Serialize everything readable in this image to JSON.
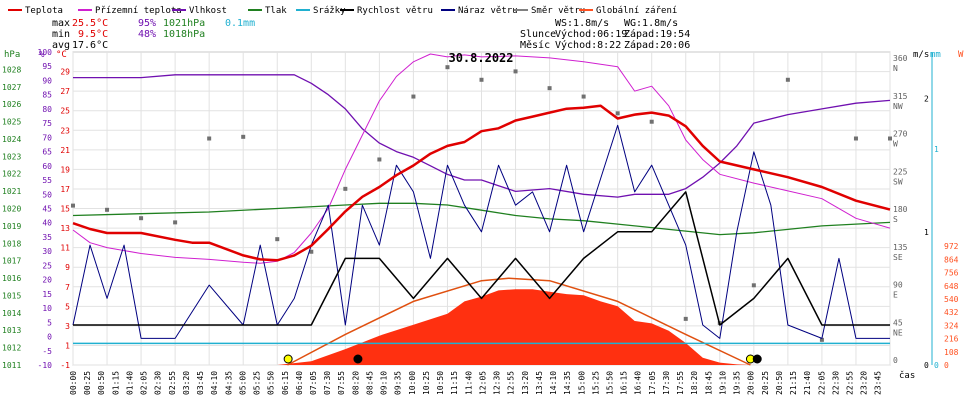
{
  "chart_data": {
    "type": "line",
    "title": "30.8.2022",
    "legend": [
      {
        "label": "Teplota",
        "color": "#e00000"
      },
      {
        "label": "Přízemní teplota",
        "color": "#d020d0"
      },
      {
        "label": "Vlhkost",
        "color": "#7010b0"
      },
      {
        "label": "Tlak",
        "color": "#208020"
      },
      {
        "label": "Srážky",
        "color": "#20b0d0"
      },
      {
        "label": "Rychlost větru",
        "color": "#000000"
      },
      {
        "label": "Náraz větru",
        "color": "#000080"
      },
      {
        "label": "Směr větru",
        "color": "#808080"
      },
      {
        "label": "Globální záření",
        "color": "#ff5020"
      }
    ],
    "stats": {
      "rows": [
        {
          "label": "max",
          "temp": "25.5°C",
          "hum": "95%",
          "press": "1021hPa",
          "rain": "0.1mm"
        },
        {
          "label": "min",
          "temp": "9.5°C",
          "hum": "48%",
          "press": "1018hPa",
          "rain": ""
        },
        {
          "label": "avg",
          "temp": "17.6°C",
          "hum": "",
          "press": "",
          "rain": ""
        }
      ]
    },
    "info": {
      "ws": "WS:1.8m/s",
      "wg": "WG:1.8m/s",
      "sun_label": "Slunce",
      "sun_rise": "Východ:06:19",
      "sun_set": "Západ:19:54",
      "moon_label": "Měsíc",
      "moon_rise": "Východ:8:22",
      "moon_set": "Západ:20:06"
    },
    "axis_units": {
      "hpa": "hPa",
      "pct": "%",
      "c": "°C",
      "ms": "m/s",
      "mm": "mm",
      "w": "W",
      "time": "čas"
    },
    "axes": {
      "hpa": {
        "min": 1011,
        "max": 1029,
        "ticks": [
          1011,
          1012,
          1013,
          1014,
          1015,
          1016,
          1017,
          1018,
          1019,
          1020,
          1021,
          1022,
          1023,
          1024,
          1025,
          1026,
          1027,
          1028
        ]
      },
      "pct": {
        "ticks": [
          -10,
          -5,
          0,
          5,
          10,
          15,
          20,
          25,
          30,
          35,
          40,
          45,
          50,
          55,
          60,
          65,
          70,
          75,
          80,
          85,
          90,
          95,
          100
        ]
      },
      "c": {
        "min": -1,
        "max": 31,
        "ticks": [
          -1,
          1,
          3,
          5,
          7,
          9,
          11,
          13,
          15,
          17,
          19,
          21,
          23,
          25,
          27,
          29
        ]
      },
      "dir": {
        "ticks": [
          {
            "deg": 360,
            "lbl": "N"
          },
          {
            "deg": 315,
            "lbl": "NW"
          },
          {
            "deg": 270,
            "lbl": "W"
          },
          {
            "deg": 225,
            "lbl": "SW"
          },
          {
            "deg": 180,
            "lbl": "S"
          },
          {
            "deg": 135,
            "lbl": "SE"
          },
          {
            "deg": 90,
            "lbl": "E"
          },
          {
            "deg": 45,
            "lbl": "NE"
          },
          {
            "deg": 0,
            "lbl": ""
          }
        ]
      },
      "ms": {
        "ticks": [
          0,
          1,
          2
        ]
      },
      "mm": {
        "ticks": [
          0,
          1
        ]
      },
      "w": {
        "ticks": [
          0,
          108,
          216,
          324,
          432,
          540,
          648,
          756,
          864,
          972
        ]
      },
      "time": [
        "00:00",
        "00:25",
        "00:50",
        "01:15",
        "01:40",
        "02:05",
        "02:30",
        "02:55",
        "03:20",
        "03:45",
        "04:10",
        "04:35",
        "05:00",
        "05:25",
        "05:50",
        "06:15",
        "06:40",
        "07:05",
        "07:30",
        "07:55",
        "08:20",
        "08:45",
        "09:10",
        "09:35",
        "10:00",
        "10:25",
        "10:50",
        "11:15",
        "11:40",
        "12:05",
        "12:30",
        "12:55",
        "13:20",
        "13:45",
        "14:10",
        "14:35",
        "15:00",
        "15:25",
        "15:50",
        "16:15",
        "16:40",
        "17:05",
        "17:30",
        "17:55",
        "18:20",
        "18:45",
        "19:10",
        "19:35",
        "20:00",
        "20:25",
        "20:50",
        "21:15",
        "21:40",
        "22:05",
        "22:30",
        "22:55",
        "23:20",
        "23:45"
      ]
    },
    "series": [
      {
        "name": "Teplota",
        "unit": "°C",
        "x_hours": [
          0,
          0.5,
          1,
          2,
          3,
          3.5,
          4,
          5,
          5.5,
          6,
          6.5,
          7,
          7.5,
          8,
          8.5,
          9,
          9.5,
          10,
          10.5,
          11,
          11.5,
          12,
          12.5,
          13,
          13.5,
          14,
          14.5,
          15,
          15.5,
          16,
          16.5,
          17,
          17.5,
          18,
          18.5,
          19,
          20,
          21,
          22,
          23,
          24
        ],
        "values": [
          13.5,
          12.9,
          12.5,
          12.5,
          11.8,
          11.5,
          11.5,
          10.2,
          9.8,
          9.7,
          10.2,
          11.2,
          12.9,
          14.7,
          16.2,
          17.2,
          18.4,
          19.4,
          20.6,
          21.4,
          21.8,
          22.9,
          23.2,
          24.0,
          24.4,
          24.8,
          25.2,
          25.3,
          25.5,
          24.2,
          24.6,
          24.8,
          24.5,
          23.4,
          21.4,
          19.8,
          19.0,
          18.2,
          17.2,
          15.8,
          14.9
        ]
      },
      {
        "name": "Přízemní teplota",
        "unit": "°C",
        "x_hours": [
          0,
          0.5,
          1,
          2,
          3,
          4,
          5,
          5.5,
          6,
          6.5,
          7,
          7.5,
          8,
          8.5,
          9,
          9.5,
          10,
          10.5,
          11,
          11.5,
          12,
          13,
          14,
          15,
          16,
          16.5,
          17,
          17.5,
          18,
          18.5,
          19,
          20,
          21,
          22,
          23,
          24
        ],
        "values": [
          12.8,
          11.5,
          11.0,
          10.4,
          10.0,
          9.8,
          9.5,
          9.4,
          9.6,
          10.5,
          12.5,
          15.0,
          19.0,
          22.5,
          26.0,
          28.5,
          30.0,
          30.8,
          30.5,
          30.7,
          30.5,
          30.6,
          30.4,
          30.0,
          29.5,
          27.0,
          27.5,
          25.5,
          22.0,
          20.0,
          18.5,
          17.6,
          16.8,
          16.0,
          14.0,
          13.0
        ]
      },
      {
        "name": "Vlhkost",
        "unit": "%",
        "x_hours": [
          0,
          1,
          2,
          3,
          4,
          5,
          6,
          6.5,
          7,
          7.5,
          8,
          8.5,
          9,
          9.5,
          10,
          10.5,
          11,
          11.5,
          12,
          12.5,
          13,
          14,
          15,
          16,
          16.5,
          17,
          17.5,
          18,
          18.5,
          19,
          19.5,
          20,
          21,
          22,
          23,
          24
        ],
        "values": [
          91,
          91,
          91,
          92,
          92,
          92,
          92,
          92,
          89,
          85,
          80,
          73,
          68,
          65,
          63,
          60,
          57,
          55,
          55,
          53,
          51,
          52,
          50,
          49,
          50,
          50,
          50,
          52,
          56,
          61,
          67,
          75,
          78,
          80,
          82,
          83
        ]
      },
      {
        "name": "Tlak",
        "unit": "hPa",
        "x_hours": [
          0,
          2,
          4,
          6,
          8,
          9,
          10,
          11,
          12,
          13,
          14,
          15,
          16,
          17,
          18,
          19,
          20,
          21,
          22,
          23,
          24
        ],
        "values": [
          1019.6,
          1019.7,
          1019.8,
          1020.0,
          1020.2,
          1020.3,
          1020.3,
          1020.2,
          1019.9,
          1019.6,
          1019.4,
          1019.3,
          1019.1,
          1018.9,
          1018.7,
          1018.5,
          1018.6,
          1018.8,
          1019.0,
          1019.1,
          1019.2
        ]
      },
      {
        "name": "Globální záření",
        "unit": "W/m²",
        "x_hours": [
          6,
          7,
          8,
          9,
          10,
          11,
          11.5,
          12,
          12.5,
          13,
          13.5,
          14,
          14.5,
          15,
          15.5,
          16,
          16.5,
          17,
          17.5,
          18,
          18.5,
          19,
          19.5,
          20
        ],
        "values": [
          0,
          30,
          130,
          240,
          330,
          420,
          520,
          560,
          610,
          620,
          620,
          600,
          580,
          570,
          520,
          480,
          360,
          340,
          280,
          180,
          60,
          20,
          5,
          0
        ]
      },
      {
        "name": "Globální záření (clear sky)",
        "unit": "W/m²",
        "x_hours": [
          6.3,
          8,
          10,
          12,
          12.8,
          14,
          16,
          18,
          19.9
        ],
        "values": [
          0,
          250,
          520,
          690,
          710,
          690,
          520,
          250,
          0
        ]
      },
      {
        "name": "Rychlost větru",
        "unit": "m/s",
        "x_hours": [
          0,
          1,
          2,
          3,
          4,
          5,
          6,
          7,
          8,
          9,
          10,
          11,
          12,
          13,
          14,
          15,
          16,
          17,
          18,
          19,
          20,
          21,
          22,
          23,
          24
        ],
        "values": [
          0.3,
          0.3,
          0.3,
          0.3,
          0.3,
          0.3,
          0.3,
          0.3,
          0.8,
          0.8,
          0.5,
          0.8,
          0.5,
          0.8,
          0.5,
          0.8,
          1.0,
          1.0,
          1.3,
          0.3,
          0.5,
          0.8,
          0.3,
          0.3,
          0.3
        ]
      },
      {
        "name": "Náraz větru",
        "unit": "m/s",
        "x_hours": [
          0,
          0.5,
          1,
          1.5,
          2,
          3,
          4,
          5,
          5.5,
          6,
          6.5,
          7,
          7.5,
          8,
          8.5,
          9,
          9.5,
          10,
          10.5,
          11,
          11.5,
          12,
          12.5,
          13,
          13.5,
          14,
          14.5,
          15,
          15.5,
          16,
          16.5,
          17,
          17.5,
          18,
          18.5,
          19,
          19.5,
          20,
          20.5,
          21,
          22,
          22.5,
          23,
          24
        ],
        "values": [
          0.3,
          0.9,
          0.5,
          0.9,
          0.2,
          0.2,
          0.6,
          0.3,
          0.9,
          0.3,
          0.5,
          0.9,
          1.2,
          0.3,
          1.2,
          0.9,
          1.5,
          1.3,
          0.8,
          1.5,
          1.2,
          1.0,
          1.5,
          1.2,
          1.3,
          1.0,
          1.5,
          1.0,
          1.4,
          1.8,
          1.3,
          1.5,
          1.2,
          0.9,
          0.3,
          0.2,
          1.0,
          1.6,
          1.2,
          0.3,
          0.2,
          0.8,
          0.2,
          0.2
        ]
      },
      {
        "name": "Směr větru",
        "unit": "°",
        "x_hours": [
          0,
          1,
          2,
          3,
          4,
          5,
          6,
          7,
          8,
          9,
          10,
          11,
          12,
          13,
          14,
          15,
          16,
          17,
          18,
          19,
          20,
          21,
          22,
          23,
          24
        ],
        "values": [
          190,
          185,
          175,
          170,
          270,
          272,
          150,
          135,
          210,
          245,
          320,
          355,
          340,
          350,
          330,
          320,
          300,
          290,
          55,
          50,
          95,
          340,
          30,
          270,
          270
        ]
      }
    ],
    "markers": {
      "sunrise": 6.32,
      "sunset": 19.9,
      "moonrise": 8.37,
      "moonset": 20.1
    }
  }
}
